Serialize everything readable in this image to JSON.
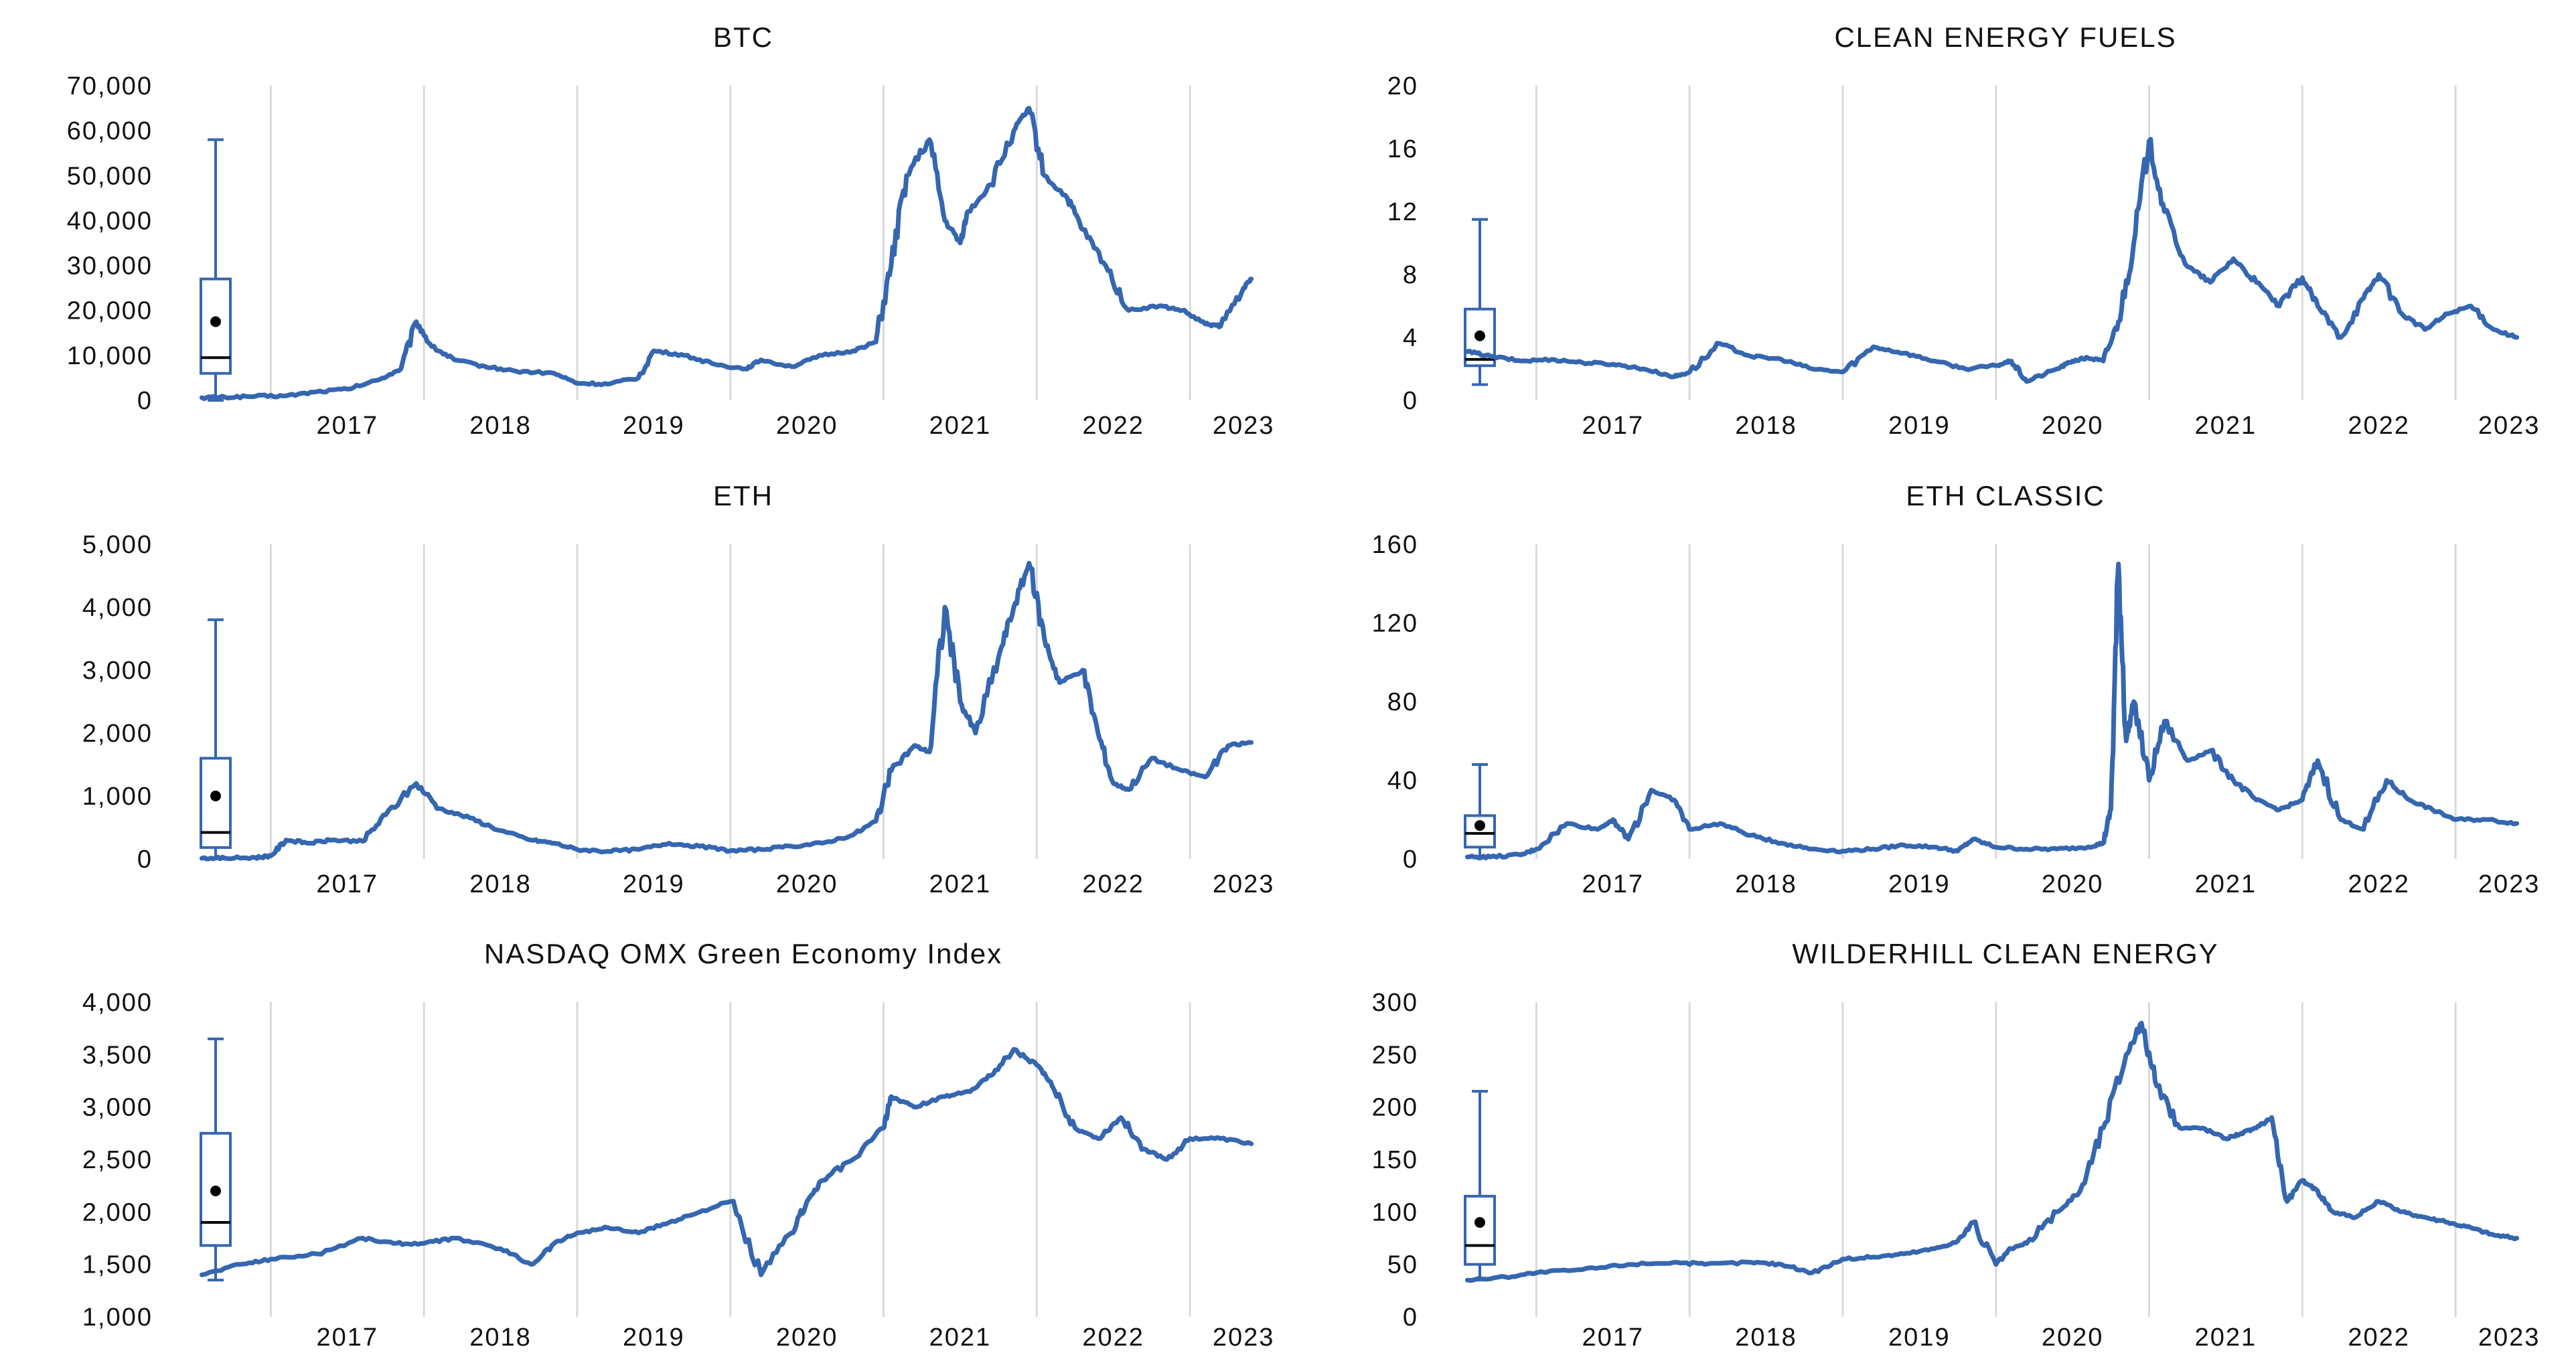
{
  "colors": {
    "series": "#3566b0",
    "grid": "#d9d9d9",
    "text": "#111111",
    "box": "#3566b0",
    "mean": "#000000"
  },
  "chart_data": [
    {
      "type": "line",
      "title": "BTC",
      "ylim": [
        0,
        70000
      ],
      "yticks": [
        0,
        10000,
        20000,
        30000,
        40000,
        50000,
        60000,
        70000
      ],
      "ytick_labels": [
        "0",
        "10,000",
        "20,000",
        "30,000",
        "40,000",
        "50,000",
        "60,000",
        "70,000"
      ],
      "xlim": [
        2016.5,
        2023.45
      ],
      "xticks": [
        2017,
        2018,
        2019,
        2020,
        2021,
        2022,
        2023
      ],
      "xtick_labels": [
        "2017",
        "2018",
        "2019",
        "2020",
        "2021",
        "2022",
        "2023"
      ],
      "boxplot": {
        "whisker_low": 0,
        "q1": 6000,
        "median": 9500,
        "q3": 27000,
        "whisker_high": 58000,
        "mean": 17500
      },
      "series": [
        {
          "name": "BTC",
          "x": [
            2016.55,
            2016.7,
            2016.9,
            2017.1,
            2017.3,
            2017.5,
            2017.7,
            2017.85,
            2017.95,
            2018.05,
            2018.2,
            2018.4,
            2018.6,
            2018.85,
            2019.0,
            2019.2,
            2019.4,
            2019.5,
            2019.7,
            2019.9,
            2020.1,
            2020.2,
            2020.4,
            2020.6,
            2020.8,
            2020.95,
            2021.05,
            2021.15,
            2021.3,
            2021.4,
            2021.5,
            2021.55,
            2021.7,
            2021.85,
            2021.95,
            2022.05,
            2022.2,
            2022.3,
            2022.45,
            2022.6,
            2022.8,
            2022.95,
            2023.1,
            2023.2,
            2023.35,
            2023.4
          ],
          "values": [
            600,
            700,
            900,
            1000,
            1900,
            2500,
            4500,
            7000,
            17500,
            12000,
            9000,
            7500,
            6500,
            6000,
            3800,
            3600,
            5000,
            11000,
            10000,
            8000,
            7000,
            9000,
            7500,
            10000,
            11000,
            13000,
            30000,
            50000,
            58000,
            40000,
            35000,
            42000,
            48000,
            60000,
            65000,
            50000,
            45000,
            38000,
            30000,
            20000,
            21000,
            20000,
            17000,
            16500,
            25000,
            27000
          ]
        }
      ]
    },
    {
      "type": "line",
      "title": "CLEAN ENERGY FUELS",
      "ylim": [
        0,
        20
      ],
      "yticks": [
        0,
        4,
        8,
        12,
        16,
        20
      ],
      "ytick_labels": [
        "0",
        "4",
        "8",
        "12",
        "16",
        "20"
      ],
      "xlim": [
        2016.5,
        2023.45
      ],
      "xticks": [
        2017,
        2018,
        2019,
        2020,
        2021,
        2022,
        2023
      ],
      "xtick_labels": [
        "2017",
        "2018",
        "2019",
        "2020",
        "2021",
        "2022",
        "2023"
      ],
      "boxplot": {
        "whisker_low": 1.0,
        "q1": 2.2,
        "median": 2.6,
        "q3": 5.8,
        "whisker_high": 11.5,
        "mean": 4.1
      },
      "series": [
        {
          "name": "CLEAN ENERGY FUELS",
          "x": [
            2016.55,
            2016.7,
            2016.9,
            2017.1,
            2017.3,
            2017.5,
            2017.7,
            2017.9,
            2018.0,
            2018.2,
            2018.4,
            2018.6,
            2018.8,
            2019.0,
            2019.2,
            2019.4,
            2019.6,
            2019.8,
            2020.0,
            2020.1,
            2020.2,
            2020.4,
            2020.5,
            2020.6,
            2020.7,
            2020.8,
            2020.9,
            2021.0,
            2021.1,
            2021.25,
            2021.4,
            2021.55,
            2021.7,
            2021.85,
            2022.0,
            2022.1,
            2022.25,
            2022.4,
            2022.5,
            2022.65,
            2022.8,
            2022.95,
            2023.1,
            2023.25,
            2023.4
          ],
          "values": [
            3.1,
            2.8,
            2.5,
            2.6,
            2.4,
            2.3,
            2.0,
            1.5,
            1.8,
            3.6,
            2.8,
            2.6,
            2.0,
            1.8,
            3.4,
            3.0,
            2.5,
            2.0,
            2.2,
            2.5,
            1.2,
            2.0,
            2.5,
            2.7,
            2.5,
            5.0,
            10.0,
            16.5,
            12.0,
            8.5,
            7.5,
            9.0,
            7.5,
            6.0,
            7.8,
            6.0,
            4.0,
            6.5,
            8.0,
            5.5,
            4.5,
            5.5,
            6.0,
            4.5,
            4.0
          ]
        }
      ]
    },
    {
      "type": "line",
      "title": "ETH",
      "ylim": [
        0,
        5000
      ],
      "yticks": [
        0,
        1000,
        2000,
        3000,
        4000,
        5000
      ],
      "ytick_labels": [
        "0",
        "1,000",
        "2,000",
        "3,000",
        "4,000",
        "5,000"
      ],
      "xlim": [
        2016.5,
        2023.45
      ],
      "xticks": [
        2017,
        2018,
        2019,
        2020,
        2021,
        2022,
        2023
      ],
      "xtick_labels": [
        "2017",
        "2018",
        "2019",
        "2020",
        "2021",
        "2022",
        "2023"
      ],
      "boxplot": {
        "whisker_low": 0,
        "q1": 180,
        "median": 420,
        "q3": 1600,
        "whisker_high": 3800,
        "mean": 1000
      },
      "series": [
        {
          "name": "ETH",
          "x": [
            2016.55,
            2016.7,
            2016.9,
            2017.0,
            2017.1,
            2017.25,
            2017.4,
            2017.6,
            2017.75,
            2017.95,
            2018.1,
            2018.3,
            2018.5,
            2018.7,
            2018.85,
            2019.0,
            2019.2,
            2019.4,
            2019.6,
            2019.8,
            2020.0,
            2020.2,
            2020.4,
            2020.6,
            2020.8,
            2020.95,
            2021.05,
            2021.2,
            2021.3,
            2021.4,
            2021.5,
            2021.6,
            2021.75,
            2021.85,
            2021.95,
            2022.05,
            2022.15,
            2022.3,
            2022.4,
            2022.5,
            2022.6,
            2022.75,
            2022.95,
            2023.1,
            2023.25,
            2023.4
          ],
          "values": [
            10,
            12,
            20,
            50,
            300,
            250,
            300,
            280,
            700,
            1200,
            800,
            650,
            450,
            300,
            250,
            150,
            120,
            150,
            250,
            200,
            130,
            150,
            200,
            250,
            380,
            600,
            1400,
            1800,
            1700,
            4000,
            2500,
            2000,
            3200,
            4000,
            4700,
            3500,
            2800,
            3000,
            2000,
            1200,
            1100,
            1600,
            1400,
            1300,
            1800,
            1850
          ]
        }
      ]
    },
    {
      "type": "line",
      "title": "ETH CLASSIC",
      "ylim": [
        0,
        160
      ],
      "yticks": [
        0,
        40,
        80,
        120,
        160
      ],
      "ytick_labels": [
        "0",
        "40",
        "80",
        "120",
        "160"
      ],
      "xlim": [
        2016.5,
        2023.45
      ],
      "xticks": [
        2017,
        2018,
        2019,
        2020,
        2021,
        2022,
        2023
      ],
      "xtick_labels": [
        "2017",
        "2018",
        "2019",
        "2020",
        "2021",
        "2022",
        "2023"
      ],
      "boxplot": {
        "whisker_low": 1,
        "q1": 6,
        "median": 13,
        "q3": 22,
        "whisker_high": 48,
        "mean": 17
      },
      "series": [
        {
          "name": "ETH CLASSIC",
          "x": [
            2016.55,
            2016.7,
            2016.9,
            2017.0,
            2017.2,
            2017.4,
            2017.5,
            2017.6,
            2017.75,
            2017.9,
            2018.0,
            2018.2,
            2018.4,
            2018.6,
            2018.8,
            2019.0,
            2019.2,
            2019.4,
            2019.6,
            2019.75,
            2019.85,
            2020.0,
            2020.2,
            2020.4,
            2020.6,
            2020.7,
            2020.75,
            2020.8,
            2020.85,
            2020.9,
            2021.0,
            2021.1,
            2021.25,
            2021.4,
            2021.55,
            2021.7,
            2021.85,
            2022.0,
            2022.1,
            2022.25,
            2022.4,
            2022.55,
            2022.7,
            2022.85,
            2023.0,
            2023.2,
            2023.4
          ],
          "values": [
            1,
            1,
            2,
            5,
            18,
            15,
            20,
            10,
            35,
            30,
            15,
            18,
            12,
            8,
            5,
            4,
            5,
            7,
            6,
            4,
            10,
            6,
            5,
            5,
            6,
            8,
            25,
            150,
            60,
            80,
            40,
            70,
            50,
            55,
            40,
            30,
            25,
            30,
            50,
            20,
            15,
            40,
            30,
            25,
            20,
            20,
            18
          ]
        }
      ]
    },
    {
      "type": "line",
      "title": "NASDAQ OMX Green Economy Index",
      "ylim": [
        1000,
        4000
      ],
      "yticks": [
        1000,
        1500,
        2000,
        2500,
        3000,
        3500,
        4000
      ],
      "ytick_labels": [
        "1,000",
        "1,500",
        "2,000",
        "2,500",
        "3,000",
        "3,500",
        "4,000"
      ],
      "xlim": [
        2016.5,
        2023.45
      ],
      "xticks": [
        2017,
        2018,
        2019,
        2020,
        2021,
        2022,
        2023
      ],
      "xtick_labels": [
        "2017",
        "2018",
        "2019",
        "2020",
        "2021",
        "2022",
        "2023"
      ],
      "boxplot": {
        "whisker_low": 1350,
        "q1": 1680,
        "median": 1900,
        "q3": 2750,
        "whisker_high": 3650,
        "mean": 2200
      },
      "series": [
        {
          "name": "NASDAQ OMX Green Economy Index",
          "x": [
            2016.55,
            2016.8,
            2017.0,
            2017.3,
            2017.6,
            2017.8,
            2018.0,
            2018.2,
            2018.5,
            2018.7,
            2018.85,
            2019.0,
            2019.2,
            2019.4,
            2019.6,
            2019.8,
            2020.0,
            2020.2,
            2020.4,
            2020.5,
            2020.6,
            2020.8,
            2021.0,
            2021.05,
            2021.2,
            2021.4,
            2021.55,
            2021.7,
            2021.85,
            2022.0,
            2022.1,
            2022.25,
            2022.4,
            2022.55,
            2022.7,
            2022.85,
            2023.0,
            2023.2,
            2023.4
          ],
          "values": [
            1400,
            1500,
            1550,
            1600,
            1750,
            1700,
            1700,
            1750,
            1650,
            1500,
            1700,
            1800,
            1850,
            1800,
            1900,
            2000,
            2100,
            1400,
            1800,
            2100,
            2300,
            2500,
            2800,
            3100,
            3000,
            3100,
            3150,
            3300,
            3550,
            3400,
            3200,
            2800,
            2700,
            2900,
            2600,
            2500,
            2700,
            2700,
            2650
          ]
        }
      ]
    },
    {
      "type": "line",
      "title": "WILDERHILL CLEAN ENERGY",
      "ylim": [
        0,
        300
      ],
      "yticks": [
        0,
        50,
        100,
        150,
        200,
        250,
        300
      ],
      "ytick_labels": [
        "0",
        "50",
        "100",
        "150",
        "200",
        "250",
        "300"
      ],
      "xlim": [
        2016.5,
        2023.45
      ],
      "xticks": [
        2017,
        2018,
        2019,
        2020,
        2021,
        2022,
        2023
      ],
      "xtick_labels": [
        "2017",
        "2018",
        "2019",
        "2020",
        "2021",
        "2022",
        "2023"
      ],
      "boxplot": {
        "whisker_low": 35,
        "q1": 50,
        "median": 68,
        "q3": 115,
        "whisker_high": 215,
        "mean": 90
      },
      "series": [
        {
          "name": "WILDERHILL CLEAN ENERGY",
          "x": [
            2016.55,
            2016.8,
            2017.0,
            2017.3,
            2017.6,
            2017.9,
            2018.1,
            2018.4,
            2018.6,
            2018.8,
            2019.0,
            2019.2,
            2019.4,
            2019.6,
            2019.75,
            2019.85,
            2020.0,
            2020.1,
            2020.2,
            2020.4,
            2020.55,
            2020.7,
            2020.85,
            2020.95,
            2021.05,
            2021.2,
            2021.35,
            2021.5,
            2021.6,
            2021.7,
            2021.8,
            2021.9,
            2022.0,
            2022.1,
            2022.2,
            2022.35,
            2022.5,
            2022.65,
            2022.8,
            2022.95,
            2023.1,
            2023.25,
            2023.4
          ],
          "values": [
            35,
            38,
            42,
            45,
            50,
            52,
            50,
            52,
            50,
            42,
            55,
            57,
            60,
            65,
            72,
            90,
            50,
            65,
            70,
            100,
            120,
            180,
            250,
            280,
            220,
            180,
            180,
            170,
            175,
            180,
            190,
            110,
            130,
            120,
            100,
            95,
            110,
            100,
            95,
            90,
            85,
            78,
            75
          ]
        }
      ]
    }
  ]
}
